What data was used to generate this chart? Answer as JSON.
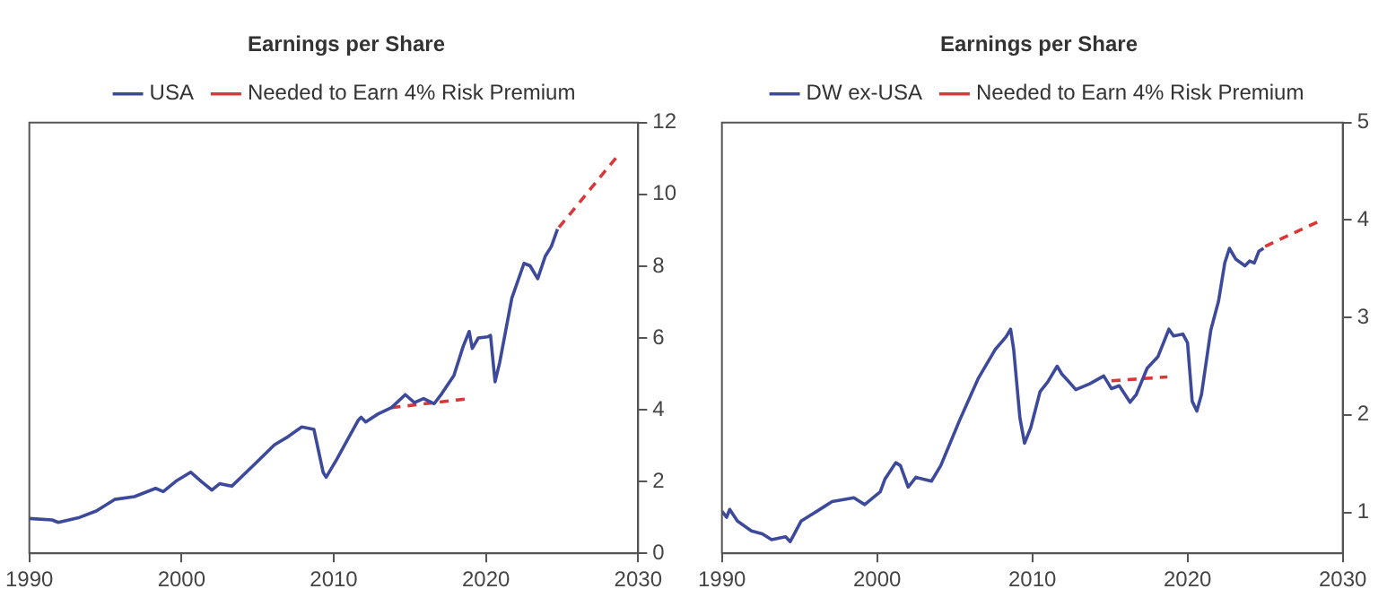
{
  "chart_data": [
    {
      "type": "line",
      "title": "Earnings per Share",
      "legend": "top",
      "line_style": "solid",
      "marker": "none",
      "xlim": [
        1990,
        2030
      ],
      "xticks": [
        1990,
        2000,
        2010,
        2020,
        2030
      ],
      "ylim": [
        0,
        12
      ],
      "yticks": [
        0,
        2,
        4,
        6,
        8,
        10,
        12
      ],
      "series": [
        {
          "name": "USA",
          "color": "#3d4a9c",
          "x": [
            1990,
            1991.5,
            1991.9,
            1993.3,
            1994.4,
            1995.6,
            1996.9,
            1998.3,
            1998.8,
            1999.7,
            2000.6,
            2001.3,
            2002.0,
            2002.5,
            2003.3,
            2004.7,
            2006.1,
            2007.0,
            2007.9,
            2008.7,
            2009.3,
            2009.5,
            2010.2,
            2010.9,
            2011.6,
            2011.8,
            2012.1,
            2012.9,
            2013.8,
            2014.7,
            2015.3,
            2015.9,
            2016.6,
            2017.1,
            2017.9,
            2018.5,
            2018.9,
            2019.1,
            2019.5,
            2020.1,
            2020.3,
            2020.6,
            2020.9,
            2021.7,
            2022.5,
            2022.9,
            2023.4,
            2023.9,
            2024.3,
            2024.7
          ],
          "values": [
            0.97,
            0.93,
            0.86,
            1.0,
            1.18,
            1.5,
            1.58,
            1.81,
            1.72,
            2.03,
            2.26,
            2.0,
            1.76,
            1.94,
            1.87,
            2.44,
            3.02,
            3.25,
            3.52,
            3.45,
            2.26,
            2.12,
            2.62,
            3.16,
            3.7,
            3.79,
            3.66,
            3.88,
            4.06,
            4.42,
            4.2,
            4.31,
            4.17,
            4.45,
            4.96,
            5.76,
            6.18,
            5.71,
            6.0,
            6.03,
            6.07,
            4.78,
            5.31,
            7.11,
            8.08,
            8.01,
            7.65,
            8.28,
            8.55,
            9.03
          ]
        },
        {
          "name": "Needed to Earn 4% Risk Premium",
          "color": "#d9383a",
          "line_style": "dashed",
          "x": [
            2013.8,
            2018.9,
            2021.8,
            2024.8,
            2028.7
          ],
          "values": [
            4.06,
            4.31,
            null,
            9.08,
            11.1
          ]
        }
      ]
    },
    {
      "type": "line",
      "title": "Earnings per Share",
      "legend": "top",
      "line_style": "solid",
      "marker": "none",
      "xlim": [
        1990,
        2030
      ],
      "xticks": [
        1990,
        2000,
        2010,
        2020,
        2030
      ],
      "ylim": [
        0.58,
        5
      ],
      "yticks": [
        1,
        2,
        3,
        4,
        5
      ],
      "series": [
        {
          "name": "DW ex-USA",
          "color": "#3d4a9c",
          "x": [
            1990,
            1990.3,
            1990.5,
            1991.0,
            1991.9,
            1992.6,
            1993.2,
            1994.1,
            1994.4,
            1995.1,
            1995.8,
            1996.5,
            1997.1,
            1998.5,
            1999.2,
            2000.2,
            2000.5,
            2001.2,
            2001.5,
            2002.0,
            2002.5,
            2003.5,
            2004.1,
            2005.3,
            2006.5,
            2007.6,
            2008.3,
            2008.6,
            2008.8,
            2009.2,
            2009.5,
            2009.9,
            2010.5,
            2011.0,
            2011.6,
            2011.9,
            2012.3,
            2012.8,
            2013.7,
            2014.6,
            2015.1,
            2015.6,
            2016.3,
            2016.7,
            2017.4,
            2018.1,
            2018.8,
            2019.1,
            2019.7,
            2020.0,
            2020.3,
            2020.6,
            2020.9,
            2021.5,
            2022.0,
            2022.4,
            2022.7,
            2023.1,
            2023.7,
            2024.0,
            2024.3,
            2024.6,
            2024.9
          ],
          "values": [
            1.01,
            0.95,
            1.03,
            0.91,
            0.81,
            0.78,
            0.72,
            0.75,
            0.7,
            0.91,
            0.98,
            1.05,
            1.11,
            1.15,
            1.08,
            1.21,
            1.34,
            1.51,
            1.48,
            1.26,
            1.36,
            1.32,
            1.48,
            1.94,
            2.37,
            2.67,
            2.8,
            2.88,
            2.67,
            1.97,
            1.71,
            1.87,
            2.24,
            2.34,
            2.5,
            2.42,
            2.35,
            2.26,
            2.32,
            2.4,
            2.27,
            2.3,
            2.13,
            2.21,
            2.48,
            2.6,
            2.88,
            2.81,
            2.83,
            2.74,
            2.14,
            2.04,
            2.21,
            2.87,
            3.17,
            3.56,
            3.71,
            3.6,
            3.53,
            3.58,
            3.56,
            3.68,
            3.71
          ]
        },
        {
          "name": "Needed to Earn 4% Risk Premium",
          "color": "#d9383a",
          "line_style": "dashed",
          "x": [
            2015.1,
            2018.7,
            2021.8,
            2025.0,
            2028.5
          ],
          "values": [
            2.35,
            2.39,
            null,
            3.73,
            3.99
          ]
        }
      ]
    }
  ]
}
